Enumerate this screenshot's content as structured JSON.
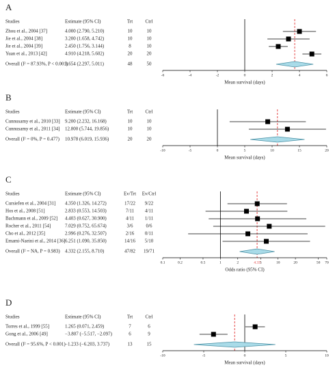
{
  "chart_data": [
    {
      "type": "forest",
      "label": "A",
      "columns": [
        "Studies",
        "Estimate (95% CI)",
        "Trt",
        "Ctrl"
      ],
      "studies": [
        "Zhou et al., 2004 [37]",
        "Jie et al., 2004 [38]",
        "Jie et al., 2004 [39]",
        "Yuan et al., 2013 [42]"
      ],
      "value_labels": [
        "4.000 (2.790, 5.210)",
        "3.200 (1.658, 4.742)",
        "2.450 (1.756, 3.144)",
        "4.910 (4.218, 5.602)"
      ],
      "trt": [
        10,
        10,
        8,
        20
      ],
      "ctrl": [
        10,
        10,
        10,
        20
      ],
      "values": [
        4.0,
        3.2,
        2.45,
        4.91
      ],
      "lower": [
        2.79,
        1.658,
        1.756,
        4.218
      ],
      "upper": [
        5.21,
        4.742,
        3.144,
        5.602
      ],
      "overall": {
        "name": "Overall (I² = 87.93%, P < 0.001)",
        "value_label": "3.654 (2.297, 5.011)",
        "trt": 48,
        "ctrl": 50,
        "value": 3.654,
        "lower": 2.297,
        "upper": 5.011
      },
      "null_value": 0,
      "xlabel": "Mean survival (days)",
      "xlim": [
        -6,
        6
      ],
      "xticks": [
        -6,
        -4,
        -2,
        0,
        2,
        4,
        6
      ]
    },
    {
      "type": "forest",
      "label": "B",
      "columns": [
        "Studies",
        "Estimate (95% CI)",
        "Trt",
        "Ctrl"
      ],
      "studies": [
        "Cunnusamy et al., 2010 [33]",
        "Cunnusamy et al., 2011 [34]"
      ],
      "value_labels": [
        "9.200 (2.232, 16.168)",
        "12.800 (5.744, 19.856)"
      ],
      "trt": [
        10,
        10
      ],
      "ctrl": [
        10,
        10
      ],
      "values": [
        9.2,
        12.8
      ],
      "lower": [
        2.232,
        5.744
      ],
      "upper": [
        16.168,
        19.856
      ],
      "overall": {
        "name": "Overall (I² = 0%, P = 0.477)",
        "value_label": "10.978 (6.019, 15.936)",
        "trt": 20,
        "ctrl": 20,
        "value": 10.978,
        "lower": 6.019,
        "upper": 15.936
      },
      "null_value": 0,
      "xlabel": "Mean survival (days)",
      "xlim": [
        -10,
        20
      ],
      "xticks": [
        -10,
        -5,
        0,
        5,
        10,
        15,
        20
      ]
    },
    {
      "type": "forest",
      "label": "C",
      "columns": [
        "Studies",
        "Estimate (95% CI)",
        "Ev/Trt",
        "Ev/Ctrl"
      ],
      "studies": [
        "Cursiefen et al., 2004 [31]",
        "Hos et al., 2008 [51]",
        "Bachmann et al., 2009 [52]",
        "Rocher et al., 2011 [54]",
        "Cho et al., 2012 [35]",
        "Emami-Naeini et al., 2014 [36]"
      ],
      "value_labels": [
        "4.350 (1.326, 14.272)",
        "2.833 (0.553, 14.503)",
        "4.403 (0.627, 30.900)",
        "7.029 (0.752, 65.674)",
        "2.996 (0.276, 32.507)",
        "6.251 (1.090, 35.850)"
      ],
      "trt": [
        "17/22",
        "7/11",
        "4/11",
        "3/6",
        "2/16",
        "14/16"
      ],
      "ctrl": [
        "9/22",
        "4/11",
        "1/11",
        "0/6",
        "0/11",
        "5/10"
      ],
      "values": [
        4.35,
        2.833,
        4.403,
        7.029,
        2.996,
        6.251
      ],
      "lower": [
        1.326,
        0.553,
        0.627,
        0.752,
        0.276,
        1.09
      ],
      "upper": [
        14.272,
        14.503,
        30.9,
        65.674,
        32.507,
        35.85
      ],
      "overall": {
        "name": "Overall (I² = NA, P = 0.983)",
        "value_label": "4.332 (2.155, 8.710)",
        "trt": "47/82",
        "ctrl": "19/71",
        "value": 4.332,
        "lower": 2.155,
        "upper": 8.71,
        "ref_label": "4.33"
      },
      "null_value": 1,
      "xlabel": "Odds ratio (95% CI)",
      "xscale": "log",
      "xlim": [
        0.1,
        70
      ],
      "xticks": [
        0.1,
        0.2,
        0.5,
        1,
        2,
        5,
        10,
        20,
        50,
        70
      ]
    },
    {
      "type": "forest",
      "label": "D",
      "columns": [
        "Studies",
        "Estimate (95% CI)",
        "Trt",
        "Ctrl"
      ],
      "studies": [
        "Torres et al., 1999 [55]",
        "Gong et al., 2006 [49]"
      ],
      "value_labels": [
        "1.265 (0.071, 2.459)",
        "−3.807 (−5.517, −2.097)"
      ],
      "trt": [
        7,
        6
      ],
      "ctrl": [
        6,
        9
      ],
      "values": [
        1.265,
        -3.807
      ],
      "lower": [
        0.071,
        -5.517
      ],
      "upper": [
        2.459,
        -2.097
      ],
      "overall": {
        "name": "Overall (I² = 95.6%, P < 0.001)",
        "value_label": "−1.233 (−6.203, 3.737)",
        "trt": 13,
        "ctrl": 15,
        "value": -1.233,
        "lower": -6.203,
        "upper": 3.737
      },
      "null_value": 0,
      "xlabel": "Mean survival (days)",
      "xlim": [
        -10,
        10
      ],
      "xticks": [
        -10,
        -5,
        0,
        5,
        10
      ]
    }
  ]
}
